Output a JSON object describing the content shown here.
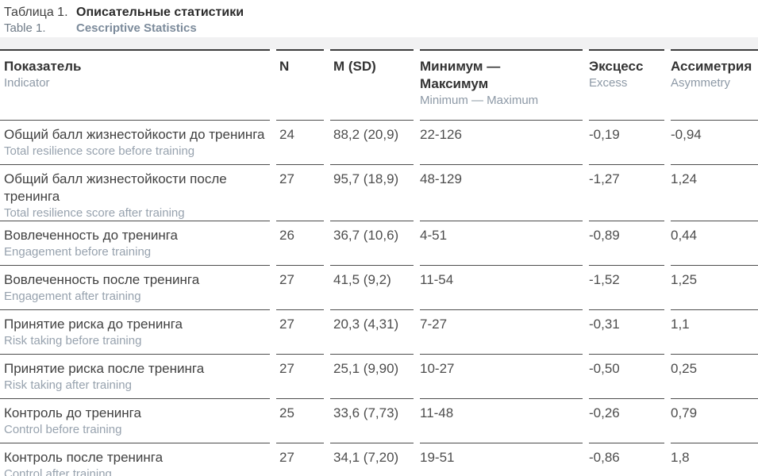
{
  "caption": {
    "label_ru": "Таблица 1.",
    "title_ru": "Описательные статистики",
    "label_en": "Table 1.",
    "title_en": "Cescriptive Statistics"
  },
  "table": {
    "columns": [
      {
        "ru": "Показатель",
        "en": "Indicator"
      },
      {
        "ru": "N",
        "en": ""
      },
      {
        "ru": "M (SD)",
        "en": ""
      },
      {
        "ru": "Минимум — Максимум",
        "en": "Minimum — Maximum"
      },
      {
        "ru": "Эксцесс",
        "en": "Excess"
      },
      {
        "ru": "Ассиметрия",
        "en": "Asymmetry"
      }
    ],
    "rows": [
      {
        "indicator_ru": "Общий балл жизнестойкости до тренинга",
        "indicator_en": "Total resilience score before training",
        "n": "24",
        "m_sd": "88,2 (20,9)",
        "min_max": "22-126",
        "excess": "-0,19",
        "asymmetry": "-0,94"
      },
      {
        "indicator_ru": "Общий балл жизнестойкости после тренинга",
        "indicator_en": "Total resilience score after training",
        "n": "27",
        "m_sd": "95,7 (18,9)",
        "min_max": "48-129",
        "excess": "-1,27",
        "asymmetry": "1,24"
      },
      {
        "indicator_ru": "Вовлеченность до тренинга",
        "indicator_en": "Engagement before training",
        "n": "26",
        "m_sd": "36,7 (10,6)",
        "min_max": "4-51",
        "excess": "-0,89",
        "asymmetry": "0,44"
      },
      {
        "indicator_ru": "Вовлеченность после тренинга",
        "indicator_en": "Engagement after training",
        "n": "27",
        "m_sd": "41,5 (9,2)",
        "min_max": "11-54",
        "excess": "-1,52",
        "asymmetry": "1,25"
      },
      {
        "indicator_ru": "Принятие риска до тренинга",
        "indicator_en": "Risk taking before training",
        "n": "27",
        "m_sd": "20,3 (4,31)",
        "min_max": "7-27",
        "excess": "-0,31",
        "asymmetry": "1,1"
      },
      {
        "indicator_ru": "Принятие риска после тренинга",
        "indicator_en": "Risk taking after training",
        "n": "27",
        "m_sd": "25,1 (9,90)",
        "min_max": "10-27",
        "excess": "-0,50",
        "asymmetry": "0,25"
      },
      {
        "indicator_ru": "Контроль до тренинга",
        "indicator_en": "Control before training",
        "n": "25",
        "m_sd": "33,6 (7,73)",
        "min_max": "11-48",
        "excess": "-0,26",
        "asymmetry": "0,79"
      },
      {
        "indicator_ru": "Контроль после тренинга",
        "indicator_en": "Control after training",
        "n": "27",
        "m_sd": "34,1 (7,20)",
        "min_max": "19-51",
        "excess": "-0,86",
        "asymmetry": "1,8"
      }
    ]
  },
  "colors": {
    "text_primary": "#414141",
    "text_secondary": "#97a2ae",
    "title_en": "#7c8b9b",
    "border_dark": "#3c3c3c",
    "row_border": "#4c4c4c",
    "band_bg": "#f1f1f2"
  }
}
